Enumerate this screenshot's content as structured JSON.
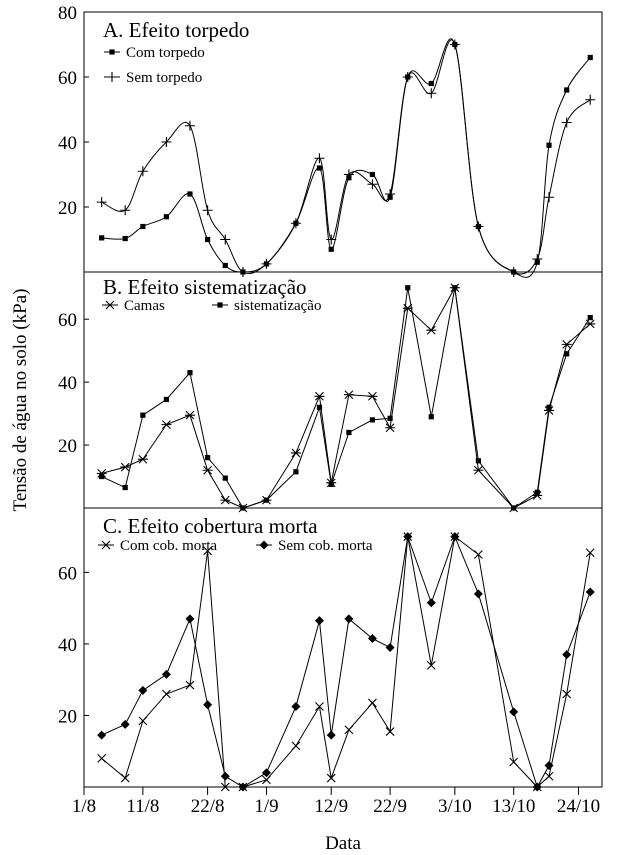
{
  "xlabel": "Data",
  "ylabel": "Tensão de água no solo (kPa)",
  "x_ticks": [
    "1/8",
    "11/8",
    "22/8",
    "1/9",
    "12/9",
    "22/9",
    "3/10",
    "13/10",
    "24/10"
  ],
  "chart_data": [
    {
      "type": "line",
      "title": "A. Efeito torpedo",
      "ylim": [
        0,
        80
      ],
      "y_ticks": [
        20,
        40,
        60,
        80
      ],
      "legend_position": "top-left",
      "x": [
        "4/8",
        "8/8",
        "11/8",
        "15/8",
        "19/8",
        "22/8",
        "25/8",
        "28/8",
        "1/9",
        "6/9",
        "10/9",
        "12/9",
        "15/9",
        "19/9",
        "22/9",
        "25/9",
        "29/9",
        "3/10",
        "7/10",
        "13/10",
        "17/10",
        "19/10",
        "22/10",
        "26/10"
      ],
      "series": [
        {
          "name": "Com torpedo",
          "marker": "square",
          "values": [
            10.5,
            10.3,
            14,
            17,
            24,
            10,
            2,
            0,
            2.5,
            15,
            32,
            7,
            29,
            30,
            23,
            60,
            58,
            70,
            14,
            0,
            3,
            39,
            56,
            66
          ]
        },
        {
          "name": "Sem torpedo",
          "marker": "plus",
          "values": [
            21.5,
            19,
            31,
            40,
            45,
            19,
            10,
            0,
            2.5,
            15,
            35,
            10,
            30,
            27,
            24,
            60,
            55,
            70,
            14,
            0,
            4,
            23,
            46,
            53
          ]
        }
      ]
    },
    {
      "type": "line",
      "title": "B. Efeito sistematização",
      "ylim": [
        0,
        75
      ],
      "y_ticks": [
        20,
        40,
        60
      ],
      "legend_position": "top-left",
      "x": [
        "4/8",
        "8/8",
        "11/8",
        "15/8",
        "19/8",
        "22/8",
        "25/8",
        "28/8",
        "1/9",
        "6/9",
        "10/9",
        "12/9",
        "15/9",
        "19/9",
        "22/9",
        "25/9",
        "29/9",
        "3/10",
        "7/10",
        "13/10",
        "17/10",
        "19/10",
        "22/10",
        "26/10"
      ],
      "series": [
        {
          "name": "Camas",
          "marker": "star",
          "values": [
            11,
            13,
            15.5,
            26.5,
            29.5,
            12,
            2.5,
            0,
            2.5,
            17.5,
            35.5,
            8,
            36,
            35.5,
            25.5,
            63.5,
            56.5,
            70,
            12,
            0,
            4,
            31,
            52,
            58.5
          ]
        },
        {
          "name": "sistematização",
          "marker": "square",
          "values": [
            10,
            6.5,
            29.5,
            34.5,
            43,
            16,
            9.5,
            0,
            2.5,
            11.5,
            32,
            7.5,
            24,
            28,
            28.5,
            70,
            29,
            70,
            15,
            0,
            5,
            32,
            49,
            60.5
          ]
        }
      ]
    },
    {
      "type": "line",
      "title": "C. Efeito cobertura morta",
      "ylim": [
        0,
        78
      ],
      "y_ticks": [
        20,
        40,
        60
      ],
      "legend_position": "top-left",
      "x": [
        "4/8",
        "8/8",
        "11/8",
        "15/8",
        "19/8",
        "22/8",
        "25/8",
        "28/8",
        "1/9",
        "6/9",
        "10/9",
        "12/9",
        "15/9",
        "19/9",
        "22/9",
        "25/9",
        "29/9",
        "3/10",
        "7/10",
        "13/10",
        "17/10",
        "19/10",
        "22/10",
        "26/10"
      ],
      "series": [
        {
          "name": "Com cob. morta",
          "marker": "x",
          "values": [
            8,
            2.5,
            18.5,
            26,
            28.5,
            66,
            0,
            0,
            2,
            11.5,
            22.5,
            2.5,
            16,
            23.5,
            15.5,
            70,
            34,
            70,
            65,
            7,
            0,
            3,
            26,
            65.5
          ]
        },
        {
          "name": "Sem cob. morta",
          "marker": "diamond",
          "values": [
            14.5,
            17.5,
            27,
            31.5,
            47,
            23,
            3,
            0,
            4,
            22.5,
            46.5,
            14.5,
            47,
            41.5,
            39,
            70,
            51.5,
            70,
            54,
            21,
            0,
            6,
            37,
            54.5
          ]
        }
      ]
    }
  ]
}
